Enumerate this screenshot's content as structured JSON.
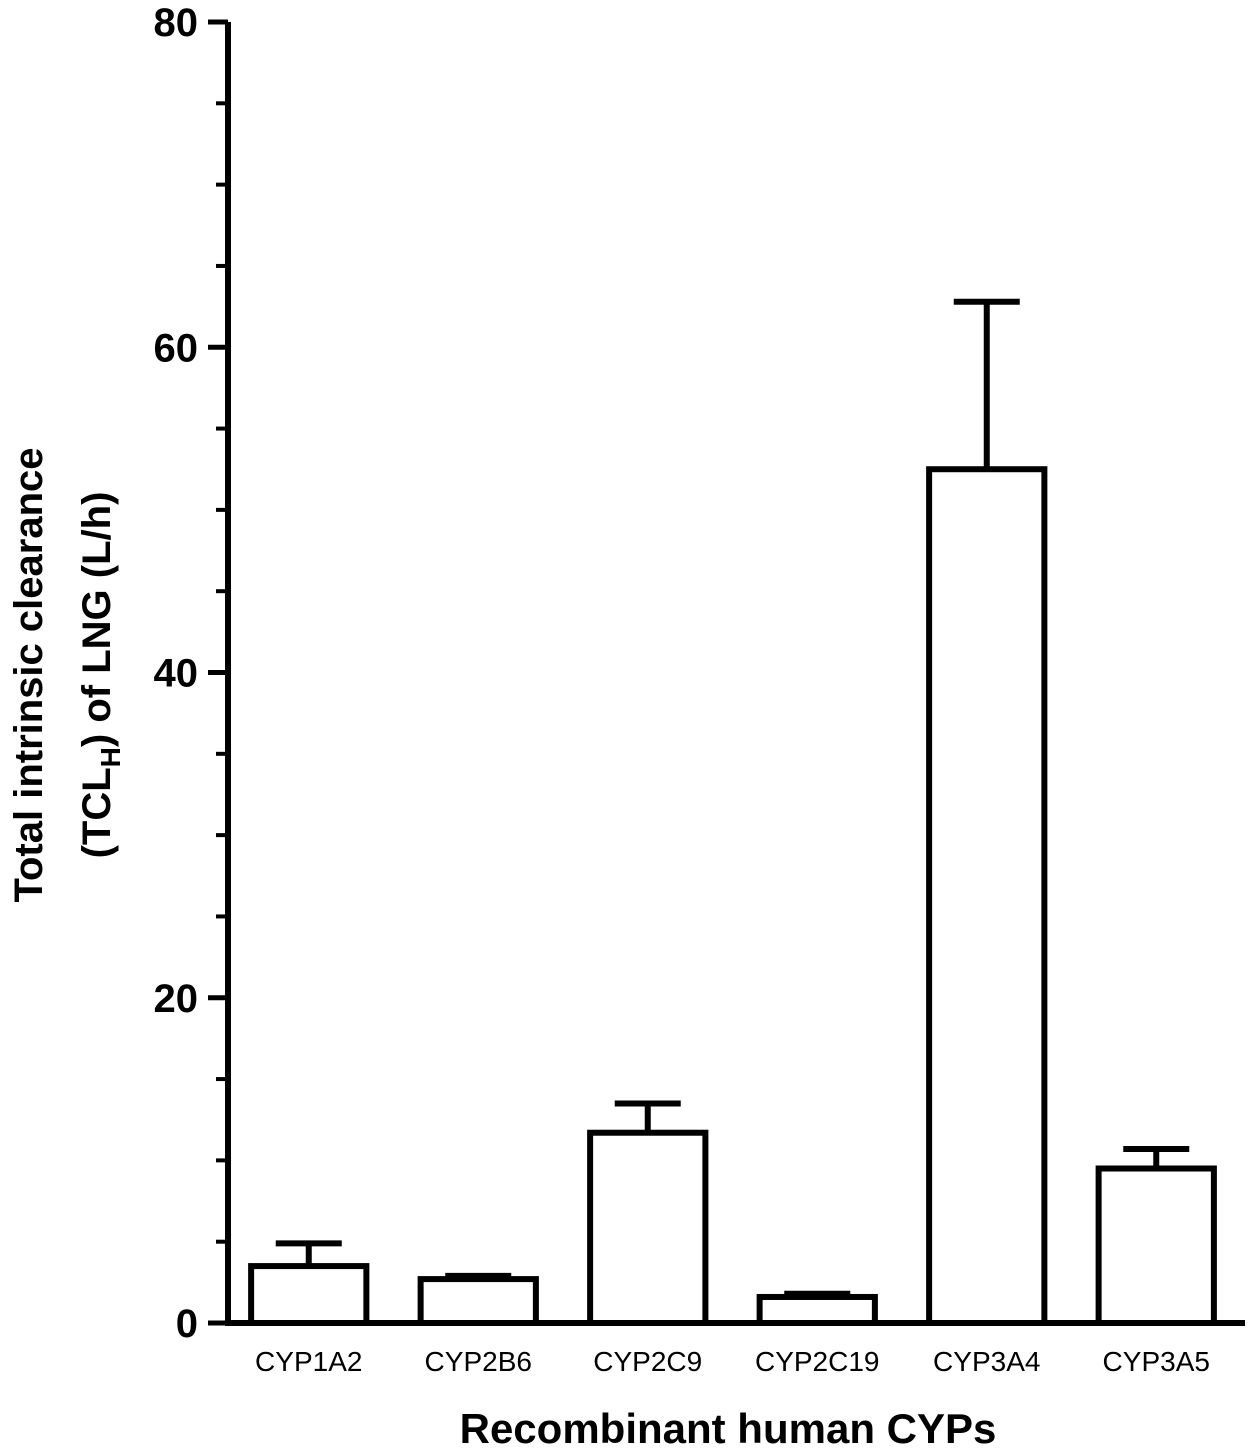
{
  "chart_data": {
    "type": "bar",
    "categories": [
      "CYP1A2",
      "CYP2B6",
      "CYP2C9",
      "CYP2C19",
      "CYP3A4",
      "CYP3A5"
    ],
    "values": [
      3.5,
      2.7,
      11.7,
      1.6,
      52.5,
      9.5
    ],
    "error_upper": [
      4.9,
      2.9,
      13.5,
      1.8,
      62.8,
      10.7
    ],
    "xlabel": "Recombinant human CYPs",
    "ylabel_line1": "Total intrinsic clearance",
    "ylabel_line2_pre": "(TCL",
    "ylabel_line2_sub": "H",
    "ylabel_line2_post": ") of LNG (L/h)",
    "ylim": [
      0,
      80
    ],
    "y_major_ticks": [
      0,
      20,
      40,
      60,
      80
    ],
    "y_minor_step": 5,
    "grid": false,
    "legend": "none",
    "bar_fill": "#ffffff",
    "stroke_color": "#000000"
  }
}
